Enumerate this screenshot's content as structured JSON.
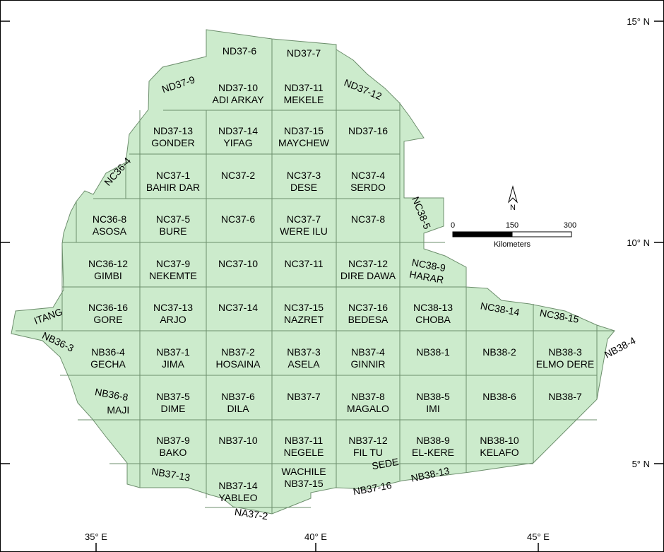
{
  "axes": {
    "lat_labels": [
      "15° N",
      "10° N",
      "5° N"
    ],
    "lon_labels": [
      "35° E",
      "40° E",
      "45° E"
    ]
  },
  "north_arrow": {
    "label": "N"
  },
  "scale_bar": {
    "ticks": [
      "0",
      "150",
      "300"
    ],
    "unit": "Kilometers"
  },
  "colors": {
    "fill": "#ccebcc",
    "line": "#6d8f6d",
    "frame": "#000000"
  },
  "sheets": [
    {
      "id": "ND37-6"
    },
    {
      "id": "ND37-7"
    },
    {
      "id": "ND37-9"
    },
    {
      "id": "ND37-10",
      "name": "ADI ARKAY"
    },
    {
      "id": "ND37-11",
      "name": "MEKELE"
    },
    {
      "id": "ND37-12"
    },
    {
      "id": "ND37-13",
      "name": "GONDER"
    },
    {
      "id": "ND37-14",
      "name": "YIFAG"
    },
    {
      "id": "ND37-15",
      "name": "MAYCHEW"
    },
    {
      "id": "ND37-16"
    },
    {
      "id": "NC36-4"
    },
    {
      "id": "NC37-1",
      "name": "BAHIR DAR"
    },
    {
      "id": "NC37-2"
    },
    {
      "id": "NC37-3",
      "name": "DESE"
    },
    {
      "id": "NC37-4",
      "name": "SERDO"
    },
    {
      "id": "NC36-8",
      "name": "ASOSA"
    },
    {
      "id": "NC37-5",
      "name": "BURE"
    },
    {
      "id": "NC37-6"
    },
    {
      "id": "NC37-7",
      "name": "WERE ILU"
    },
    {
      "id": "NC37-8"
    },
    {
      "id": "NC38-5"
    },
    {
      "id": "NC36-12",
      "name": "GIMBI"
    },
    {
      "id": "NC37-9",
      "name": "NEKEMTE"
    },
    {
      "id": "NC37-10"
    },
    {
      "id": "NC37-11"
    },
    {
      "id": "NC37-12",
      "name": "DIRE DAWA"
    },
    {
      "id": "NC38-9",
      "name": "HARAR"
    },
    {
      "id": "ITANG"
    },
    {
      "id": "NC36-16",
      "name": "GORE"
    },
    {
      "id": "NC37-13",
      "name": "ARJO"
    },
    {
      "id": "NC37-14"
    },
    {
      "id": "NC37-15",
      "name": "NAZRET"
    },
    {
      "id": "NC37-16",
      "name": "BEDESA"
    },
    {
      "id": "NC38-13",
      "name": "CHOBA"
    },
    {
      "id": "NC38-14"
    },
    {
      "id": "NC38-15"
    },
    {
      "id": "NB36-3"
    },
    {
      "id": "NB36-4",
      "name": "GECHA"
    },
    {
      "id": "NB37-1",
      "name": "JIMA"
    },
    {
      "id": "NB37-2",
      "name": "HOSAINA"
    },
    {
      "id": "NB37-3",
      "name": "ASELA"
    },
    {
      "id": "NB37-4",
      "name": "GINNIR"
    },
    {
      "id": "NB38-1"
    },
    {
      "id": "NB38-2"
    },
    {
      "id": "NB38-3",
      "name": "ELMO DERE"
    },
    {
      "id": "NB38-4"
    },
    {
      "id": "NB36-8",
      "name": "MAJI"
    },
    {
      "id": "NB37-5",
      "name": "DIME"
    },
    {
      "id": "NB37-6",
      "name": "DILA"
    },
    {
      "id": "NB37-7"
    },
    {
      "id": "NB37-8",
      "name": "MAGALO"
    },
    {
      "id": "NB38-5",
      "name": "IMI"
    },
    {
      "id": "NB38-6"
    },
    {
      "id": "NB38-7"
    },
    {
      "id": "NB37-9",
      "name": "BAKO"
    },
    {
      "id": "NB37-10"
    },
    {
      "id": "NB37-11",
      "name": "NEGELE"
    },
    {
      "id": "NB37-12",
      "name": "FIL TU"
    },
    {
      "id": "NB38-9",
      "name": "EL-KERE"
    },
    {
      "id": "NB38-10",
      "name": "KELAFO"
    },
    {
      "id": "NB37-13"
    },
    {
      "id": "NB37-14",
      "name": "YABLEO"
    },
    {
      "id": "NB37-15",
      "name": "WACHILE"
    },
    {
      "id": "NB37-16",
      "name": "SEDE"
    },
    {
      "id": "NB38-13"
    },
    {
      "id": "NA37-2"
    }
  ]
}
